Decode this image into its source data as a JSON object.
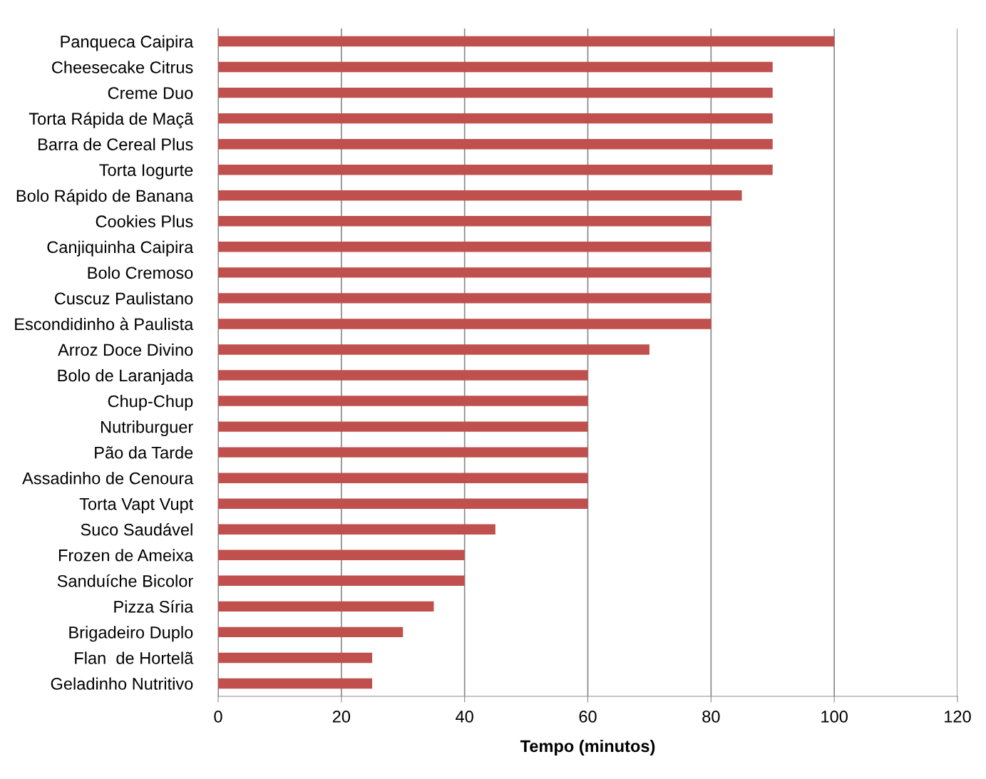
{
  "chart_data": {
    "type": "bar",
    "orientation": "horizontal",
    "xlabel": "Tempo (minutos)",
    "categories": [
      "Panqueca Caipira",
      "Cheesecake Citrus",
      "Creme Duo",
      "Torta Rápida de Maçã",
      "Barra de Cereal Plus",
      "Torta Iogurte",
      "Bolo Rápido de Banana",
      "Cookies Plus",
      "Canjiquinha Caipira",
      "Bolo Cremoso",
      "Cuscuz Paulistano",
      "Escondidinho à Paulista",
      "Arroz Doce Divino",
      "Bolo de Laranjada",
      "Chup-Chup",
      "Nutriburguer",
      "Pão da Tarde",
      "Assadinho de Cenoura",
      "Torta Vapt Vupt",
      "Suco Saudável",
      "Frozen de Ameixa",
      "Sanduíche Bicolor",
      "Pizza Síria",
      "Brigadeiro Duplo",
      "Flan  de Hortelã",
      "Geladinho Nutritivo"
    ],
    "values": [
      100,
      90,
      90,
      90,
      90,
      90,
      85,
      80,
      80,
      80,
      80,
      80,
      70,
      60,
      60,
      60,
      60,
      60,
      60,
      45,
      40,
      40,
      35,
      30,
      25,
      25
    ],
    "color": "#c0504d",
    "xlim": [
      0,
      120
    ],
    "xticks": [
      0,
      20,
      40,
      60,
      80,
      100,
      120
    ],
    "grid": "x",
    "legend": false
  }
}
